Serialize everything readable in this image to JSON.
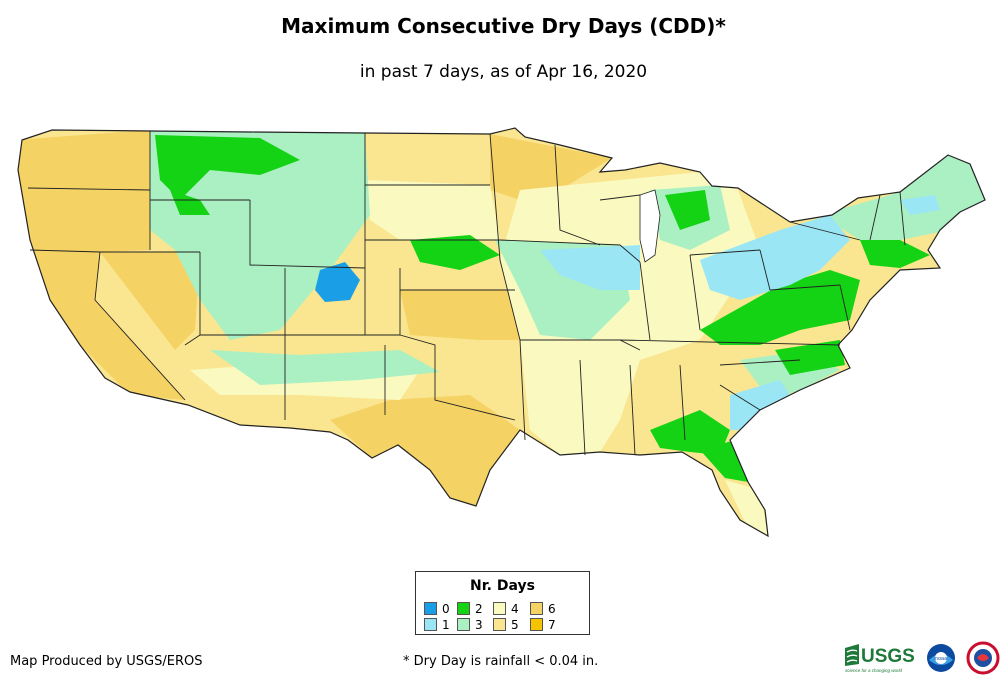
{
  "title": "Maximum Consecutive Dry Days (CDD)*",
  "subtitle": "in past 7 days, as of Apr 16, 2020",
  "legend": {
    "title": "Nr. Days",
    "items": [
      {
        "label": "0",
        "color": "#1a9ee6"
      },
      {
        "label": "1",
        "color": "#9be6f5"
      },
      {
        "label": "2",
        "color": "#14d214"
      },
      {
        "label": "3",
        "color": "#aaf0c2"
      },
      {
        "label": "4",
        "color": "#fafac0"
      },
      {
        "label": "5",
        "color": "#fae690"
      },
      {
        "label": "6",
        "color": "#f5d264"
      },
      {
        "label": "7",
        "color": "#f5c300"
      }
    ]
  },
  "footer": {
    "credit": "Map Produced by USGS/EROS",
    "note": "* Dry Day is rainfall < 0.04 in."
  },
  "logos": {
    "usgs": "USGS",
    "usgs_tagline": "science for a changing world",
    "noaa": "noaa",
    "nws": "NATIONAL WEATHER SERVICE"
  },
  "colors": {
    "day0": "#1a9ee6",
    "day1": "#9be6f5",
    "day2": "#14d214",
    "day3": "#aaf0c2",
    "day4": "#fafac0",
    "day5": "#fae690",
    "day6": "#f5d264",
    "day7": "#f5c300",
    "border": "#222222",
    "usgs_green": "#1f7a3a"
  }
}
